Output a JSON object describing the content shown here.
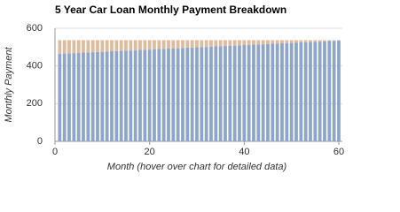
{
  "chart_data": {
    "type": "stacked-bar",
    "title": "5 Year Car Loan Monthly Payment Breakdown",
    "x_label": "Month (hover over chart for detailed data)",
    "y_label": "Monthly Payment",
    "x": [
      1,
      2,
      3,
      4,
      5,
      6,
      7,
      8,
      9,
      10,
      11,
      12,
      13,
      14,
      15,
      16,
      17,
      18,
      19,
      20,
      21,
      22,
      23,
      24,
      25,
      26,
      27,
      28,
      29,
      30,
      31,
      32,
      33,
      34,
      35,
      36,
      37,
      38,
      39,
      40,
      41,
      42,
      43,
      44,
      45,
      46,
      47,
      48,
      49,
      50,
      51,
      52,
      53,
      54,
      55,
      56,
      57,
      58,
      59,
      60
    ],
    "series": [
      {
        "color": "#8fa4cc",
        "values": [
          465,
          466,
          467,
          468,
          470,
          471,
          472,
          473,
          474,
          475,
          477,
          478,
          479,
          480,
          481,
          482,
          484,
          485,
          486,
          487,
          488,
          490,
          491,
          492,
          493,
          494,
          495,
          497,
          498,
          499,
          500,
          501,
          502,
          504,
          505,
          506,
          507,
          508,
          509,
          511,
          512,
          513,
          514,
          515,
          516,
          518,
          519,
          520,
          521,
          522,
          523,
          525,
          526,
          527,
          528,
          529,
          530,
          532,
          533,
          534
        ]
      },
      {
        "color": "#dfbb9d",
        "values": [
          72,
          71,
          70,
          69,
          67,
          66,
          65,
          64,
          63,
          62,
          60,
          59,
          58,
          57,
          56,
          55,
          53,
          52,
          51,
          50,
          49,
          47,
          46,
          45,
          44,
          43,
          42,
          40,
          39,
          38,
          37,
          36,
          35,
          33,
          32,
          31,
          30,
          29,
          28,
          26,
          25,
          24,
          23,
          22,
          21,
          19,
          18,
          17,
          16,
          15,
          14,
          12,
          11,
          10,
          9,
          8,
          7,
          5,
          4,
          3
        ]
      }
    ],
    "xlim": [
      0,
      60
    ],
    "xticks": [
      0,
      20,
      40,
      60
    ],
    "ylim": [
      0,
      600
    ],
    "yticks": [
      0,
      200,
      400,
      600
    ],
    "grid": true
  }
}
